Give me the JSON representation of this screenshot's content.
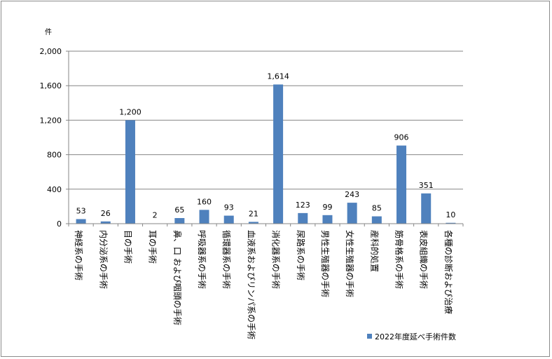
{
  "chart_data": {
    "type": "bar",
    "title": "",
    "xlabel": "",
    "ylabel": "",
    "unit_label": "件",
    "categories": [
      "神経系の手術",
      "内分泌系の手術",
      "目の手術",
      "耳の手術",
      "鼻、口 および咽頭の手術",
      "呼吸器系の手術",
      "循環器系の手術",
      "血液系およびリンパ系の手術",
      "消化器系の手術",
      "尿路系の手術",
      "男性生殖器の手術",
      "女性生殖器の手術",
      "産科的処置",
      "筋骨格系の手術",
      "表皮組織の手術",
      "各種の診断および治療"
    ],
    "series": [
      {
        "name": "2022年度延べ手術件数",
        "values": [
          53,
          26,
          1200,
          2,
          65,
          160,
          93,
          21,
          1614,
          123,
          99,
          243,
          85,
          906,
          351,
          10
        ],
        "value_labels": [
          "53",
          "26",
          "1,200",
          "2",
          "65",
          "160",
          "93",
          "21",
          "1,614",
          "123",
          "99",
          "243",
          "85",
          "906",
          "351",
          "10"
        ],
        "color": "#4f81bd"
      }
    ],
    "ylim": [
      0,
      2000
    ],
    "yticks": [
      0,
      400,
      800,
      1200,
      1600,
      2000
    ],
    "ytick_labels": [
      "0",
      "400",
      "800",
      "1,200",
      "1,600",
      "2,000"
    ],
    "grid": true,
    "legend_position": "bottom-right",
    "colors": {
      "bar": "#4f81bd",
      "grid": "#868686",
      "axis": "#868686",
      "border": "#8c8c8c"
    }
  }
}
